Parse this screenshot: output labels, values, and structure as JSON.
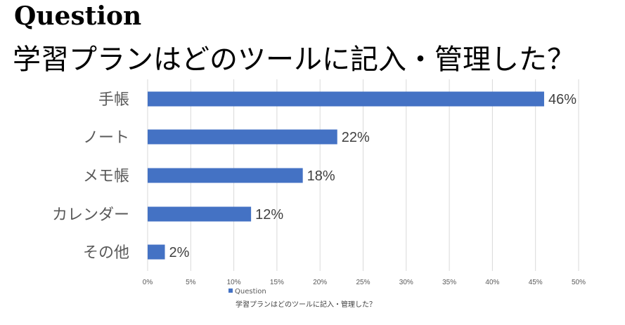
{
  "header": {
    "label": "Question",
    "question": "学習プランはどのツールに記入・管理した？"
  },
  "chart_data": {
    "type": "bar",
    "orientation": "horizontal",
    "categories": [
      "手帳",
      "ノート",
      "メモ帳",
      "カレンダー",
      "その他"
    ],
    "series": [
      {
        "name": "Question",
        "values": [
          46,
          22,
          18,
          12,
          2
        ]
      }
    ],
    "value_labels": [
      "46%",
      "22%",
      "18%",
      "12%",
      "2%"
    ],
    "x_ticks": [
      "0%",
      "5%",
      "10%",
      "15%",
      "20%",
      "25%",
      "30%",
      "35%",
      "40%",
      "45%",
      "50%"
    ],
    "xlim": [
      0,
      50
    ],
    "xlabel": "学習プランはどのツールに記入・管理した？",
    "grid": true,
    "legend_position": "bottom",
    "bar_color": "#4472c4",
    "grid_color": "#d9d9d9"
  }
}
